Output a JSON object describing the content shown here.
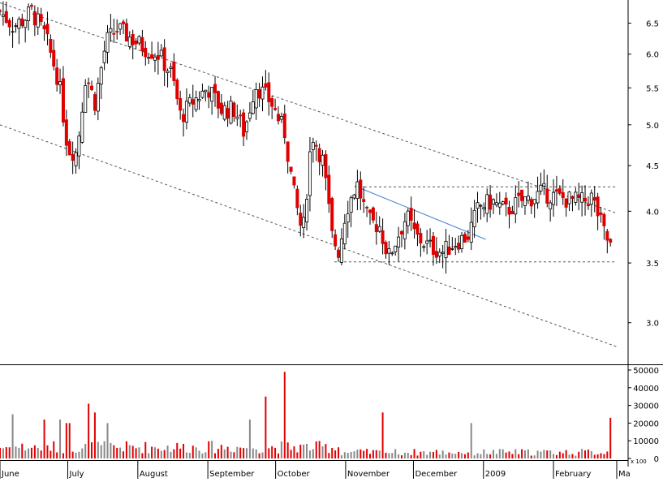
{
  "chart_data": [
    {
      "type": "candlestick",
      "title": "",
      "y_axis": {
        "scale": "log",
        "range": [
          2.7,
          6.9
        ],
        "ticks": [
          "3.0",
          "3.5",
          "4.0",
          "4.5",
          "5.0",
          "5.5",
          "6.0",
          "6.5"
        ],
        "position": "right"
      },
      "colors": {
        "up": "#ffffff",
        "down": "#e00000",
        "outline": "#000000",
        "trendline_blue": "#4a7fd0",
        "channel_lines": "#555555"
      },
      "x_months": [
        {
          "label": "June",
          "day": 0
        },
        {
          "label": "July",
          "day": 30
        },
        {
          "label": "August",
          "day": 61
        },
        {
          "label": "September",
          "day": 92
        },
        {
          "label": "October",
          "day": 122
        },
        {
          "label": "November",
          "day": 153
        },
        {
          "label": "December",
          "day": 183
        },
        {
          "label": "2009",
          "day": 214
        },
        {
          "label": "February",
          "day": 245
        },
        {
          "label": "Ma",
          "day": 273
        }
      ],
      "close_path": [
        {
          "day": 0,
          "close": 6.7
        },
        {
          "day": 6,
          "close": 6.45
        },
        {
          "day": 10,
          "close": 6.55
        },
        {
          "day": 14,
          "close": 6.7
        },
        {
          "day": 20,
          "close": 6.3
        },
        {
          "day": 26,
          "close": 5.6
        },
        {
          "day": 30,
          "close": 4.7
        },
        {
          "day": 34,
          "close": 4.65
        },
        {
          "day": 38,
          "close": 5.7
        },
        {
          "day": 42,
          "close": 5.3
        },
        {
          "day": 47,
          "close": 6.2
        },
        {
          "day": 52,
          "close": 6.4
        },
        {
          "day": 58,
          "close": 6.25
        },
        {
          "day": 64,
          "close": 6.1
        },
        {
          "day": 70,
          "close": 6.0
        },
        {
          "day": 76,
          "close": 5.7
        },
        {
          "day": 80,
          "close": 5.1
        },
        {
          "day": 85,
          "close": 5.3
        },
        {
          "day": 92,
          "close": 5.5
        },
        {
          "day": 98,
          "close": 5.2
        },
        {
          "day": 104,
          "close": 5.2
        },
        {
          "day": 108,
          "close": 4.9
        },
        {
          "day": 113,
          "close": 5.55
        },
        {
          "day": 120,
          "close": 5.3
        },
        {
          "day": 126,
          "close": 4.9
        },
        {
          "day": 130,
          "close": 4.2
        },
        {
          "day": 134,
          "close": 3.75
        },
        {
          "day": 138,
          "close": 4.9
        },
        {
          "day": 143,
          "close": 4.55
        },
        {
          "day": 147,
          "close": 3.75
        },
        {
          "day": 150,
          "close": 3.6
        },
        {
          "day": 153,
          "close": 4.0
        },
        {
          "day": 158,
          "close": 4.3
        },
        {
          "day": 163,
          "close": 3.9
        },
        {
          "day": 168,
          "close": 3.85
        },
        {
          "day": 172,
          "close": 3.55
        },
        {
          "day": 176,
          "close": 3.75
        },
        {
          "day": 180,
          "close": 3.95
        },
        {
          "day": 184,
          "close": 3.75
        },
        {
          "day": 190,
          "close": 3.65
        },
        {
          "day": 196,
          "close": 3.6
        },
        {
          "day": 202,
          "close": 3.7
        },
        {
          "day": 207,
          "close": 3.75
        },
        {
          "day": 212,
          "close": 4.05
        },
        {
          "day": 218,
          "close": 4.1
        },
        {
          "day": 224,
          "close": 4.0
        },
        {
          "day": 230,
          "close": 4.1
        },
        {
          "day": 236,
          "close": 4.15
        },
        {
          "day": 240,
          "close": 4.2
        },
        {
          "day": 246,
          "close": 4.15
        },
        {
          "day": 252,
          "close": 4.12
        },
        {
          "day": 258,
          "close": 4.1
        },
        {
          "day": 262,
          "close": 4.15
        },
        {
          "day": 265,
          "close": 3.95
        },
        {
          "day": 268,
          "close": 3.75
        },
        {
          "day": 271,
          "close": 3.62
        }
      ],
      "lines": [
        {
          "name": "upper-channel",
          "style": "dashed",
          "from": {
            "day": 0,
            "price": 6.85
          },
          "to": {
            "day": 273,
            "price": 3.98
          }
        },
        {
          "name": "lower-channel",
          "style": "dashed",
          "from": {
            "day": 0,
            "price": 5.0
          },
          "to": {
            "day": 273,
            "price": 2.82
          }
        },
        {
          "name": "resistance",
          "style": "dashed",
          "from": {
            "day": 157,
            "price": 4.26
          },
          "to": {
            "day": 273,
            "price": 4.26
          }
        },
        {
          "name": "support",
          "style": "dashed",
          "from": {
            "day": 148,
            "price": 3.51
          },
          "to": {
            "day": 273,
            "price": 3.51
          }
        },
        {
          "name": "downtrend",
          "style": "solid-blue",
          "from": {
            "day": 157,
            "price": 4.27
          },
          "to": {
            "day": 215,
            "price": 3.72
          }
        }
      ]
    },
    {
      "type": "bar",
      "title": "",
      "series_name": "volume",
      "y_axis": {
        "range": [
          0,
          50000
        ],
        "ticks": [
          "0",
          "10000",
          "20000",
          "30000",
          "40000",
          "50000"
        ],
        "position": "right",
        "scale_label": "x 100"
      },
      "base_level": 8000,
      "spikes": [
        {
          "day": 5,
          "value": 25000
        },
        {
          "day": 19,
          "value": 22000
        },
        {
          "day": 27,
          "value": 22000
        },
        {
          "day": 30,
          "value": 20000
        },
        {
          "day": 39,
          "value": 31000
        },
        {
          "day": 42,
          "value": 26000
        },
        {
          "day": 47,
          "value": 20000
        },
        {
          "day": 111,
          "value": 22000
        },
        {
          "day": 118,
          "value": 35000
        },
        {
          "day": 126,
          "value": 49000
        },
        {
          "day": 170,
          "value": 26000
        },
        {
          "day": 209,
          "value": 20000
        },
        {
          "day": 270,
          "value": 23000
        },
        {
          "day": 272,
          "value": 20000
        }
      ]
    }
  ]
}
